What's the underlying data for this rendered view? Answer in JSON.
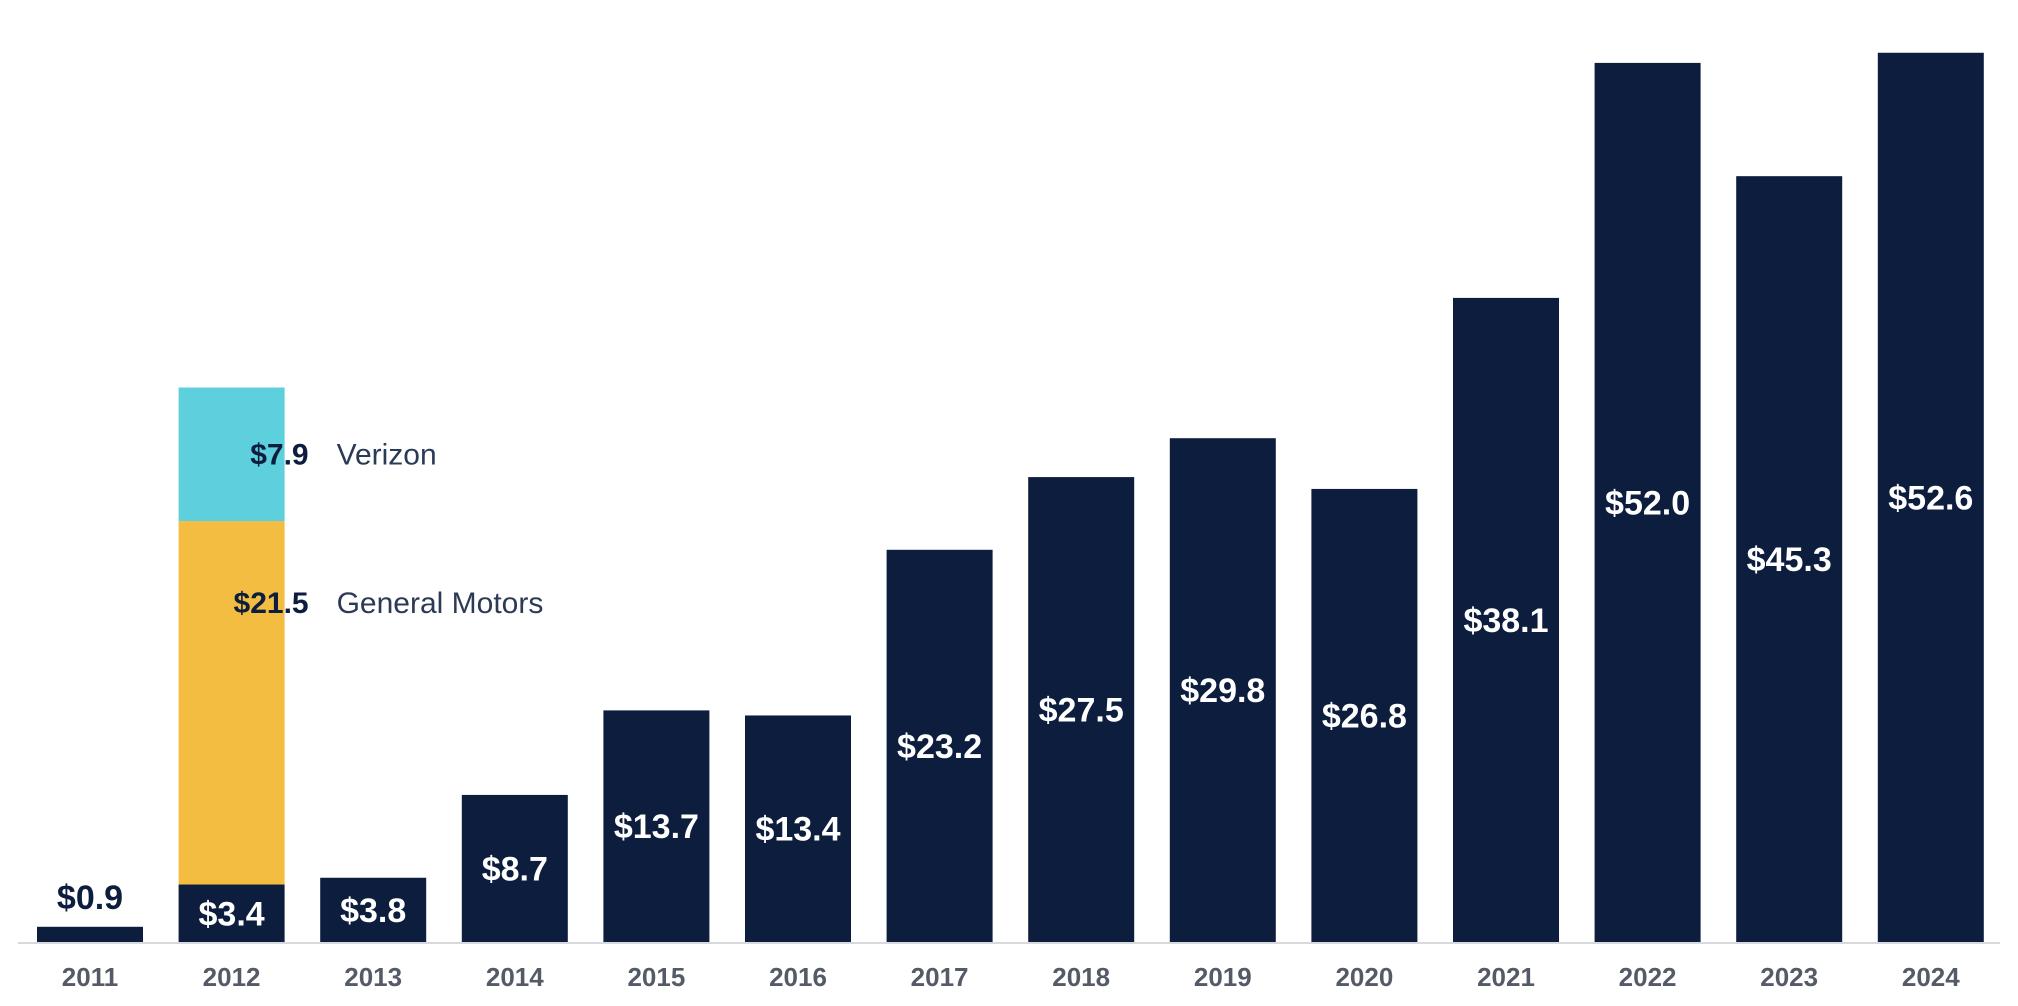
{
  "chart_data": {
    "type": "bar",
    "categories": [
      "2011",
      "2012",
      "2013",
      "2014",
      "2015",
      "2016",
      "2017",
      "2018",
      "2019",
      "2020",
      "2021",
      "2022",
      "2023",
      "2024"
    ],
    "values": [
      0.9,
      3.4,
      3.8,
      8.7,
      13.7,
      13.4,
      23.2,
      27.5,
      29.8,
      26.8,
      38.1,
      52.0,
      45.3,
      52.6
    ],
    "value_labels": [
      "$0.9",
      "$3.4",
      "$3.8",
      "$8.7",
      "$13.7",
      "$13.4",
      "$23.2",
      "$27.5",
      "$29.8",
      "$26.8",
      "$38.1",
      "$52.0",
      "$45.3",
      "$52.6"
    ],
    "stacked_extra": [
      {
        "category": "2012",
        "name": "General Motors",
        "value": 21.5,
        "label": "$21.5",
        "color": "#f2bd40"
      },
      {
        "category": "2012",
        "name": "Verizon",
        "value": 7.9,
        "label": "$7.9",
        "color": "#5ecfdc"
      }
    ],
    "bar_color": "#0c1d3e",
    "ylim": [
      0,
      53
    ],
    "grid": false
  }
}
